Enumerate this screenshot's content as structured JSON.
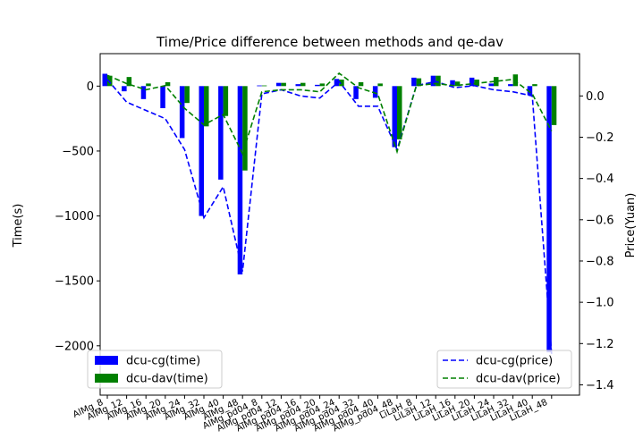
{
  "chart_data": {
    "type": "bar",
    "title": "Time/Price difference between methods and qe-dav",
    "ylabel": "Time(s)",
    "y2label": "Price(Yuan)",
    "ylim": [
      -2380,
      250
    ],
    "y2lim": [
      -1.45,
      0.205
    ],
    "yticks": [
      0,
      -500,
      -1000,
      -1500,
      -2000
    ],
    "y2ticks": [
      0.0,
      -0.2,
      -0.4,
      -0.6,
      -0.8,
      -1.0,
      -1.2,
      -1.4
    ],
    "categories": [
      "AlMg_8",
      "AlMg_12",
      "AlMg_16",
      "AlMg_20",
      "AlMg_24",
      "AlMg_32",
      "AlMg_40",
      "AlMg_48",
      "AlMg_pd04_8",
      "AlMg_pd04_12",
      "AlMg_pd04_16",
      "AlMg_pd04_20",
      "AlMg_pd04_24",
      "AlMg_pd04_32",
      "AlMg_pd04_40",
      "AlMg_pd04_48",
      "LiLaH_8",
      "LiLaH_12",
      "LiLaH_16",
      "LiLaH_20",
      "LiLaH_24",
      "LiLaH_32",
      "LiLaH_40",
      "LiLaH_48"
    ],
    "bar_series": [
      {
        "name": "dcu-cg(time)",
        "color": "#0000ff",
        "values": [
          95,
          -40,
          -100,
          -170,
          -400,
          -1000,
          -720,
          -1450,
          5,
          25,
          15,
          10,
          55,
          -100,
          -90,
          -470,
          65,
          80,
          45,
          65,
          20,
          15,
          -70,
          -2050
        ]
      },
      {
        "name": "dcu-dav(time)",
        "color": "#008000",
        "values": [
          80,
          70,
          20,
          30,
          -130,
          -310,
          -230,
          -650,
          5,
          25,
          25,
          20,
          50,
          30,
          20,
          -410,
          60,
          80,
          35,
          50,
          70,
          90,
          15,
          -300
        ]
      }
    ],
    "line_series": [
      {
        "name": "dcu-cg(price)",
        "color": "#0000ff",
        "style": "dashed",
        "values": [
          0.08,
          -0.03,
          -0.07,
          -0.11,
          -0.26,
          -0.59,
          -0.44,
          -0.85,
          0.01,
          0.03,
          0.0,
          -0.01,
          0.07,
          -0.05,
          -0.05,
          -0.26,
          0.05,
          0.07,
          0.04,
          0.05,
          0.03,
          0.02,
          0.0,
          -1.25
        ]
      },
      {
        "name": "dcu-dav(price)",
        "color": "#008000",
        "style": "dashed",
        "values": [
          0.1,
          0.06,
          0.03,
          0.05,
          -0.06,
          -0.14,
          -0.09,
          -0.28,
          0.02,
          0.03,
          0.03,
          0.02,
          0.11,
          0.04,
          0.01,
          -0.27,
          0.05,
          0.06,
          0.05,
          0.06,
          0.07,
          0.08,
          0.01,
          -0.17
        ]
      }
    ],
    "grid": false,
    "legend_bars": "lower-left",
    "legend_lines": "lower-right"
  }
}
